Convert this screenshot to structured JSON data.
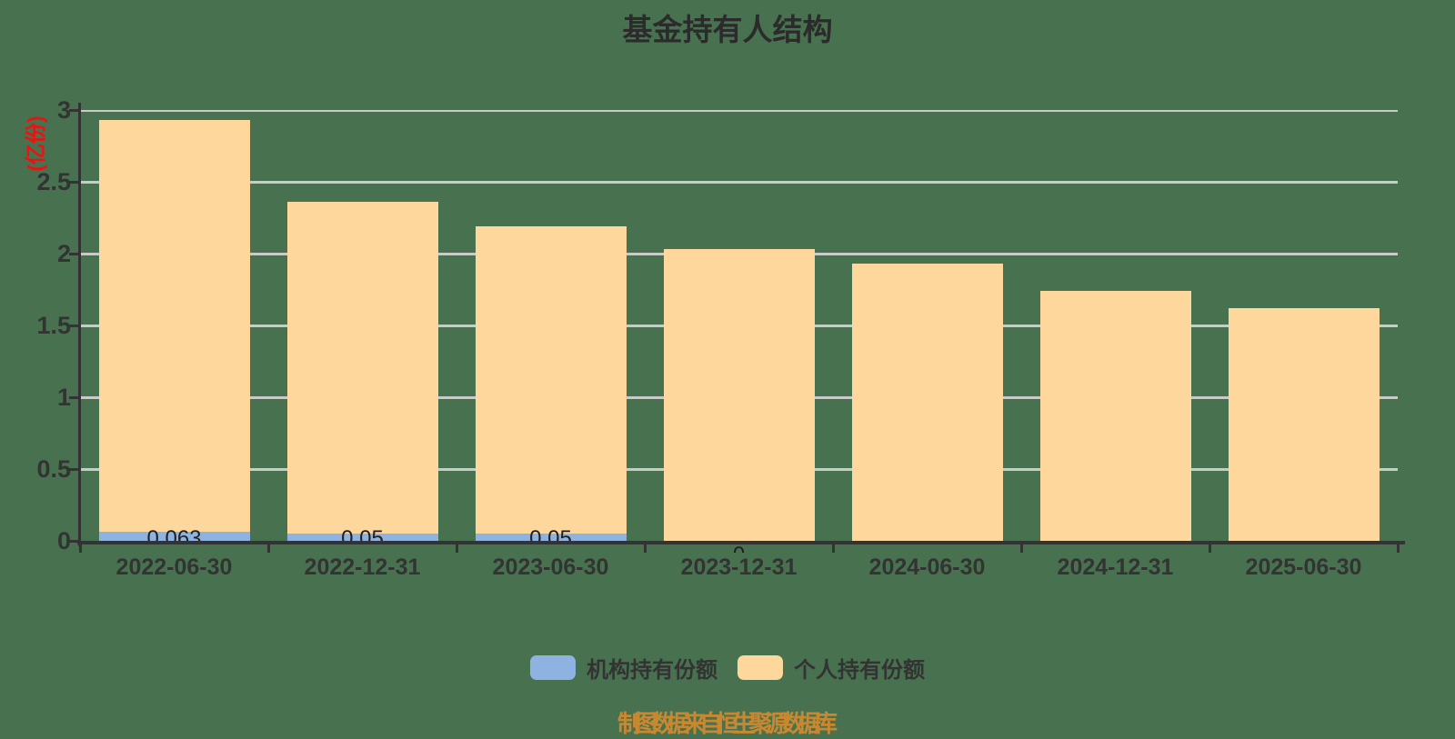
{
  "title": "基金持有人结构",
  "y_axis_unit": "(亿份)",
  "footer_note": "制图数据来自恒生聚源数据库",
  "colors": {
    "background": "#48724F",
    "institutional": "#8FB3E1",
    "individual": "#FDD79C",
    "axis": "#333333",
    "gridline": "#C8CBC8",
    "unit_label": "#EE1111",
    "footer": "#C9882F",
    "text": "#333333",
    "bar_label": "#1F1F1F"
  },
  "legend": {
    "items": [
      {
        "label": "机构持有份额",
        "color": "#8FB3E1"
      },
      {
        "label": "个人持有份额",
        "color": "#FDD79C"
      }
    ]
  },
  "chart_data": {
    "type": "bar",
    "stacked": true,
    "title": "基金持有人结构",
    "ylabel": "(亿份)",
    "categories": [
      "2022-06-30",
      "2022-12-31",
      "2023-06-30",
      "2023-12-31",
      "2024-06-30",
      "2024-12-31",
      "2025-06-30"
    ],
    "series": [
      {
        "name": "机构持有份额",
        "color": "#8FB3E1",
        "values": [
          0.063,
          0.05,
          0.05,
          0,
          0,
          0,
          0
        ],
        "labels": [
          "0.063",
          "0.05",
          "0.05",
          "0",
          "",
          "",
          ""
        ]
      },
      {
        "name": "个人持有份额",
        "color": "#FDD79C",
        "values": [
          2.87,
          2.31,
          2.14,
          2.03,
          1.93,
          1.74,
          1.62
        ],
        "labels": [
          "",
          "",
          "",
          "",
          "",
          "",
          ""
        ]
      }
    ],
    "stack_totals": [
      2.93,
      2.36,
      2.19,
      2.03,
      1.93,
      1.74,
      1.62
    ],
    "ylim": [
      0,
      3
    ],
    "y_ticks": [
      0,
      0.5,
      1,
      1.5,
      2,
      2.5,
      3
    ],
    "grid": true,
    "legend_position": "bottom"
  }
}
